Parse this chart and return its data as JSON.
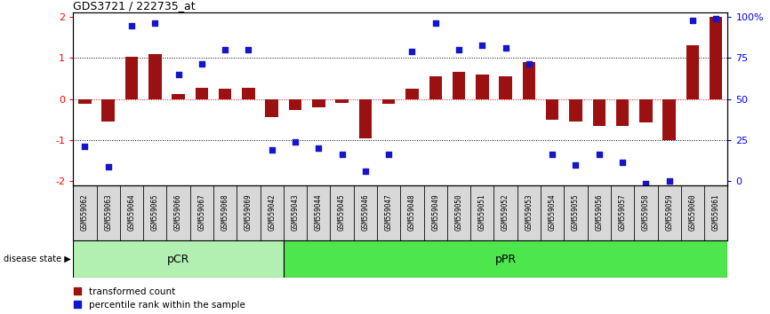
{
  "title": "GDS3721 / 222735_at",
  "samples": [
    "GSM559062",
    "GSM559063",
    "GSM559064",
    "GSM559065",
    "GSM559066",
    "GSM559067",
    "GSM559068",
    "GSM559069",
    "GSM559042",
    "GSM559043",
    "GSM559044",
    "GSM559045",
    "GSM559046",
    "GSM559047",
    "GSM559048",
    "GSM559049",
    "GSM559050",
    "GSM559051",
    "GSM559052",
    "GSM559053",
    "GSM559054",
    "GSM559055",
    "GSM559056",
    "GSM559057",
    "GSM559058",
    "GSM559059",
    "GSM559060",
    "GSM559061"
  ],
  "bar_values": [
    -0.12,
    -0.55,
    1.02,
    1.1,
    0.12,
    0.28,
    0.25,
    0.27,
    -0.45,
    -0.28,
    -0.2,
    -0.1,
    -0.95,
    -0.12,
    0.25,
    0.55,
    0.65,
    0.6,
    0.55,
    0.9,
    -0.5,
    -0.55,
    -0.65,
    -0.65,
    -0.58,
    -1.0,
    1.3,
    2.0
  ],
  "dot_values": [
    -1.15,
    -1.65,
    1.78,
    1.85,
    0.6,
    0.85,
    1.2,
    1.2,
    -1.25,
    -1.05,
    -1.2,
    -1.35,
    -1.75,
    -1.35,
    1.15,
    1.85,
    1.2,
    1.3,
    1.25,
    0.85,
    -1.35,
    -1.6,
    -1.35,
    -1.55,
    -2.05,
    -2.0,
    1.9,
    1.95
  ],
  "pCR_count": 9,
  "pPR_count": 19,
  "ylim": [
    -2.1,
    2.1
  ],
  "yticks": [
    -2,
    -1,
    0,
    1,
    2
  ],
  "right_ytick_labels": [
    "0",
    "25",
    "50",
    "75",
    "100%"
  ],
  "right_ytick_vals": [
    -2,
    -1,
    0,
    1,
    2
  ],
  "bar_color": "#9B1010",
  "dot_color": "#1515CC",
  "background_color": "#ffffff",
  "pCR_color": "#b2f0b2",
  "pPR_color": "#4de64d",
  "label_bar": "transformed count",
  "label_dot": "percentile rank within the sample",
  "disease_state_label": "disease state"
}
